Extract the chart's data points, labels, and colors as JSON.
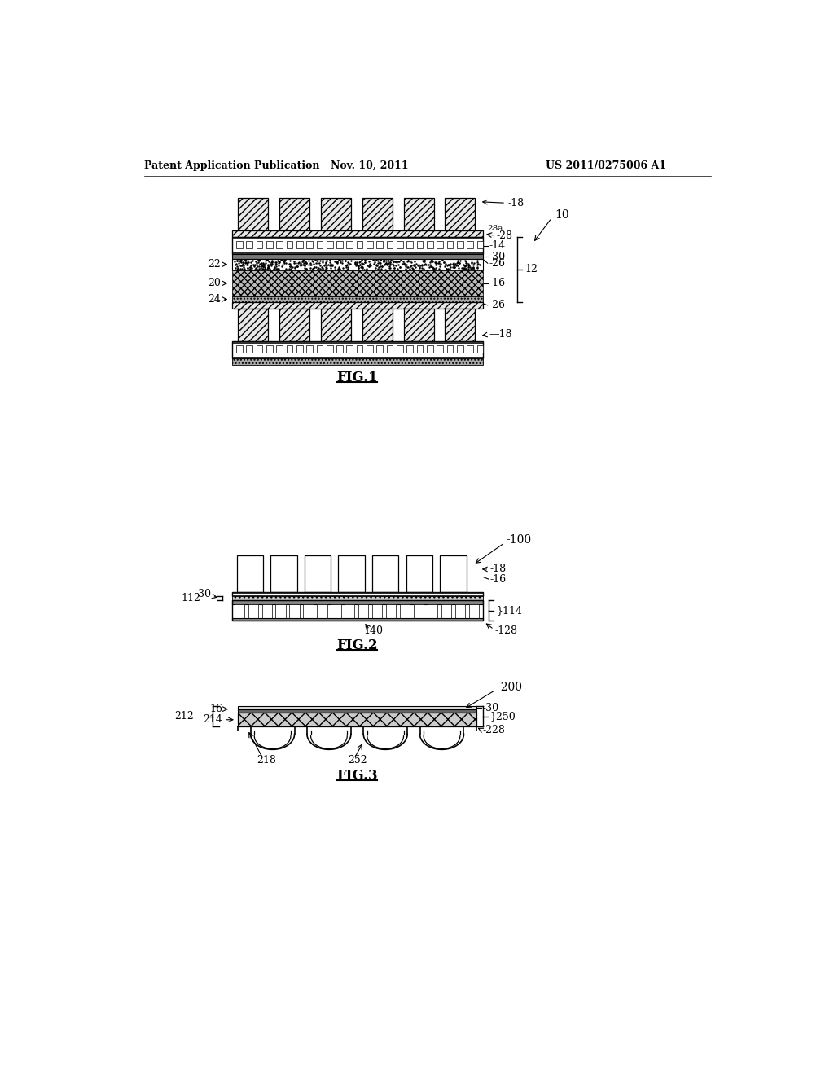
{
  "bg_color": "#ffffff",
  "header_left": "Patent Application Publication",
  "header_center": "Nov. 10, 2011",
  "header_right": "US 2011/0275006 A1",
  "fig1_label": "FIG.1",
  "fig2_label": "FIG.2",
  "fig3_label": "FIG.3"
}
